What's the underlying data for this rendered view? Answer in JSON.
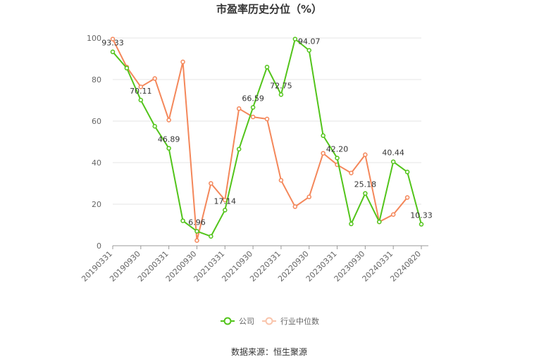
{
  "chart_data": {
    "type": "line",
    "title": "市盈率历史分位（%）",
    "xlabel": "",
    "ylabel": "",
    "ylim": [
      0,
      100
    ],
    "yticks": [
      0,
      20,
      40,
      60,
      80,
      100
    ],
    "grid": true,
    "legend_position": "bottom",
    "x": [
      "20190331",
      "20190630",
      "20190930",
      "20191231",
      "20200331",
      "20200630",
      "20200930",
      "20201231",
      "20210331",
      "20210630",
      "20210930",
      "20211231",
      "20220331",
      "20220630",
      "20220930",
      "20221231",
      "20230331",
      "20230630",
      "20230930",
      "20231231",
      "20240331",
      "20240630",
      "20240820"
    ],
    "x_tick_labels": [
      "20190331",
      "20190930",
      "20200331",
      "20200930",
      "20210331",
      "20210930",
      "20220331",
      "20220930",
      "20230331",
      "20230930",
      "20240331",
      "20240820"
    ],
    "series": [
      {
        "name": "公司",
        "color": "#52c41a",
        "values": [
          93.33,
          85.5,
          70.11,
          57.5,
          46.89,
          12.0,
          6.96,
          4.5,
          17.14,
          46.5,
          66.59,
          86.0,
          72.75,
          99.5,
          94.07,
          53.0,
          42.2,
          10.5,
          25.18,
          11.5,
          40.44,
          35.5,
          10.33
        ]
      },
      {
        "name": "行业中位数",
        "color": "#f4875a",
        "values": [
          99.5,
          86.0,
          76.5,
          80.5,
          60.5,
          88.5,
          2.5,
          30.0,
          22.0,
          66.0,
          62.0,
          61.0,
          31.5,
          18.8,
          23.5,
          44.5,
          39.0,
          35.0,
          43.8,
          11.5,
          15.0,
          23.2,
          null
        ]
      }
    ],
    "data_labels": [
      {
        "series": 0,
        "index": 0,
        "text": "93.33"
      },
      {
        "series": 0,
        "index": 2,
        "text": "70.11"
      },
      {
        "series": 0,
        "index": 4,
        "text": "46.89"
      },
      {
        "series": 0,
        "index": 6,
        "text": "6.96"
      },
      {
        "series": 0,
        "index": 8,
        "text": "17.14"
      },
      {
        "series": 0,
        "index": 10,
        "text": "66.59"
      },
      {
        "series": 0,
        "index": 12,
        "text": "72.75"
      },
      {
        "series": 0,
        "index": 14,
        "text": "94.07"
      },
      {
        "series": 0,
        "index": 16,
        "text": "42.20"
      },
      {
        "series": 0,
        "index": 18,
        "text": "25.18"
      },
      {
        "series": 0,
        "index": 20,
        "text": "40.44"
      },
      {
        "series": 0,
        "index": 22,
        "text": "10.33"
      }
    ]
  },
  "source_text": "数据来源：恒生聚源"
}
